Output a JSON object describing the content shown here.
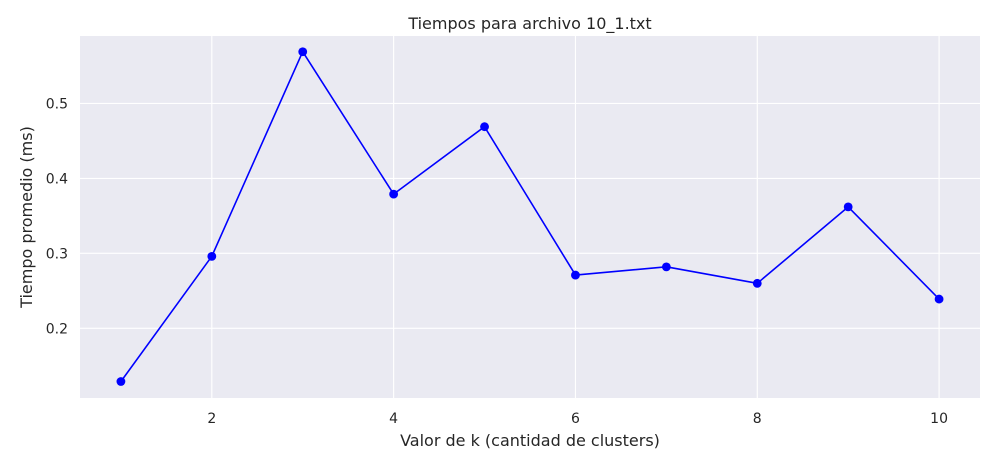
{
  "chart_data": {
    "type": "line",
    "title": "Tiempos para archivo 10_1.txt",
    "xlabel": "Valor de k (cantidad de clusters)",
    "ylabel": "Tiempo promedio (ms)",
    "x": [
      1,
      2,
      3,
      4,
      5,
      6,
      7,
      8,
      9,
      10
    ],
    "series": [
      {
        "values": [
          0.129,
          0.296,
          0.569,
          0.379,
          0.469,
          0.271,
          0.282,
          0.26,
          0.362,
          0.239
        ]
      }
    ],
    "xlim": [
      0.55,
      10.45
    ],
    "ylim": [
      0.107,
      0.59
    ],
    "xticks": [
      2,
      4,
      6,
      8,
      10
    ],
    "xtick_labels": [
      "2",
      "4",
      "6",
      "8",
      "10"
    ],
    "yticks": [
      0.2,
      0.3,
      0.4,
      0.5
    ],
    "ytick_labels": [
      "0.2",
      "0.3",
      "0.4",
      "0.5"
    ],
    "grid": true,
    "colors": {
      "line": "#0000ff",
      "plot_background": "#eaeaf2",
      "grid": "#ffffff"
    }
  }
}
